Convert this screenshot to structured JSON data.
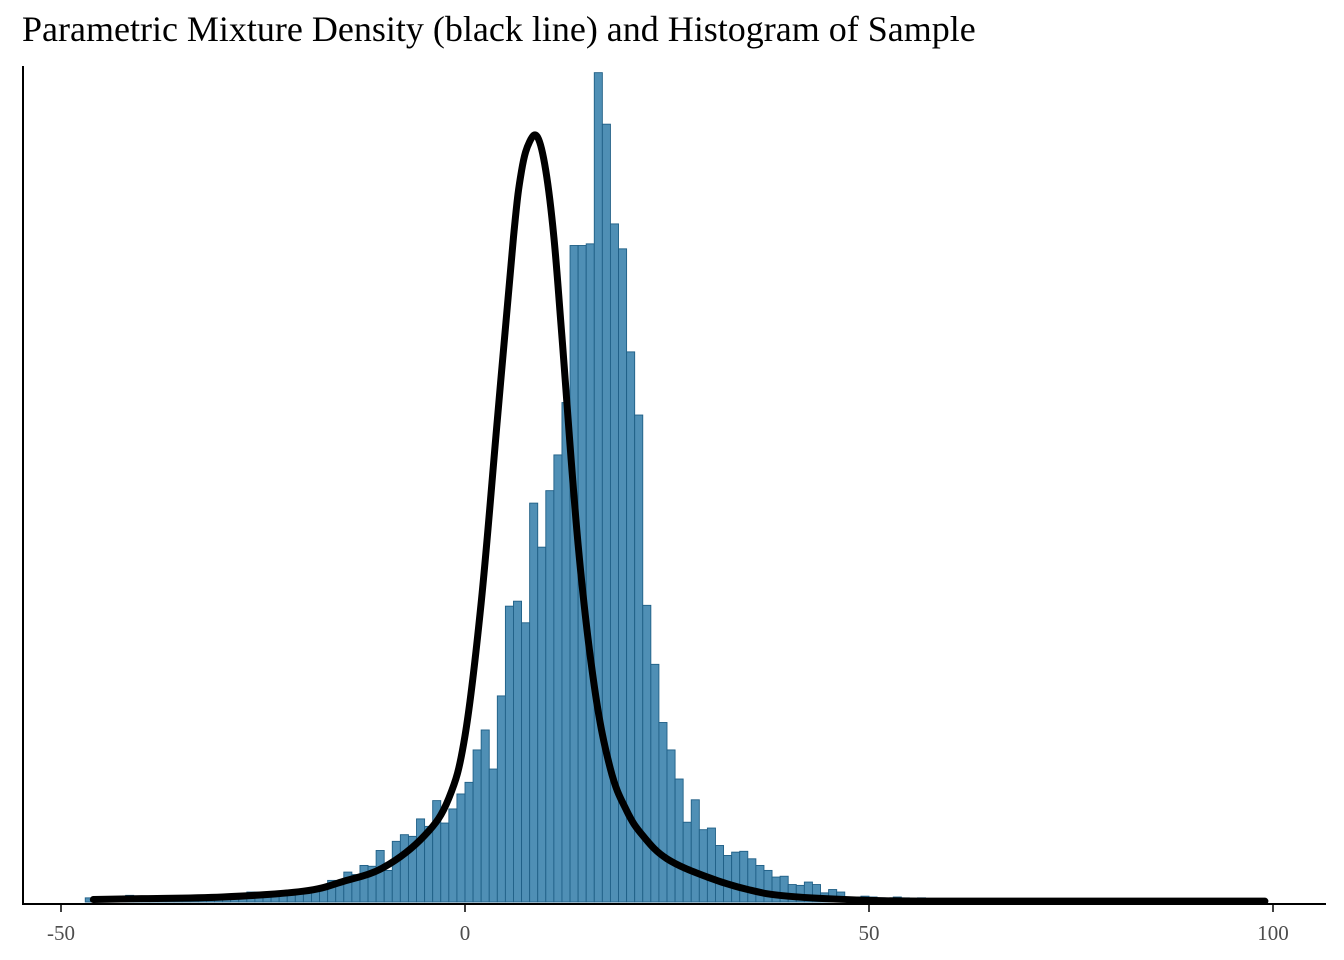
{
  "chart_data": {
    "type": "bar",
    "title": "Parametric Mixture Density (black line) and Histogram of Sample",
    "xlabel": "",
    "ylabel": "",
    "xlim": [
      -50,
      100
    ],
    "x_ticks": [
      "-50",
      "0",
      "50",
      "100"
    ],
    "x_tick_values": [
      -50,
      0,
      50,
      100
    ],
    "y_axis_visible": true,
    "y_ticks_shown": false,
    "grid": false,
    "legend": "none",
    "bin_width": 1,
    "bin_start": -47,
    "bars_note_units": "relative density (peak = 1)",
    "bar_values": [
      0.005,
      0.002,
      0.002,
      0.002,
      0.003,
      0.008,
      0.003,
      0.002,
      0.003,
      0.002,
      0.002,
      0.002,
      0.002,
      0.003,
      0.003,
      0.004,
      0.004,
      0.005,
      0.004,
      0.004,
      0.012,
      0.012,
      0.008,
      0.009,
      0.01,
      0.011,
      0.012,
      0.014,
      0.016,
      0.018,
      0.026,
      0.021,
      0.036,
      0.033,
      0.044,
      0.043,
      0.062,
      0.038,
      0.073,
      0.081,
      0.079,
      0.1,
      0.091,
      0.122,
      0.095,
      0.112,
      0.13,
      0.144,
      0.183,
      0.207,
      0.16,
      0.248,
      0.356,
      0.362,
      0.336,
      0.48,
      0.427,
      0.495,
      0.538,
      0.601,
      0.79,
      0.79,
      0.792,
      0.998,
      0.936,
      0.816,
      0.786,
      0.662,
      0.586,
      0.357,
      0.286,
      0.216,
      0.183,
      0.148,
      0.096,
      0.123,
      0.087,
      0.089,
      0.068,
      0.056,
      0.06,
      0.061,
      0.052,
      0.044,
      0.038,
      0.03,
      0.031,
      0.021,
      0.02,
      0.024,
      0.021,
      0.011,
      0.015,
      0.012,
      0.006,
      0.006,
      0.007,
      0.006,
      0.005,
      0.004,
      0.006,
      0.005,
      0.004,
      0.005,
      0.003,
      0.003,
      0.003,
      0.003,
      0.002,
      0.002,
      0.002,
      0.002,
      0.002,
      0.002,
      0.002,
      0.002,
      0.002,
      0.002,
      0.002,
      0.002,
      0.002,
      0.002,
      0.002,
      0.002,
      0.002,
      0.002,
      0.002,
      0.002,
      0.002,
      0.002,
      0.002,
      0.002,
      0.002,
      0.002,
      0.002,
      0.002,
      0.002,
      0.002,
      0.002,
      0.002,
      0.002,
      0.002,
      0.002,
      0.002,
      0.002,
      0.002
    ],
    "density_curve": {
      "description_color": "black",
      "peak_x": 9,
      "peak_value": 0.92,
      "x": [
        -46,
        -40,
        -30,
        -20,
        -15,
        -10,
        -5,
        -2,
        0,
        2,
        4,
        6,
        7,
        8,
        9,
        10,
        11,
        12,
        14,
        16,
        18,
        20,
        22,
        25,
        30,
        35,
        40,
        50,
        60,
        80,
        99
      ],
      "y": [
        0.003,
        0.004,
        0.006,
        0.013,
        0.025,
        0.042,
        0.08,
        0.125,
        0.2,
        0.36,
        0.58,
        0.8,
        0.88,
        0.915,
        0.92,
        0.88,
        0.8,
        0.68,
        0.43,
        0.26,
        0.16,
        0.11,
        0.08,
        0.052,
        0.03,
        0.015,
        0.007,
        0.002,
        0.001,
        0.001,
        0.001
      ]
    },
    "colors": {
      "bar_fill": "#4f8fb5",
      "bar_stroke": "#1f5f86",
      "line": "#000000",
      "axis": "#000000",
      "tick_text": "#4d4d4d"
    }
  }
}
